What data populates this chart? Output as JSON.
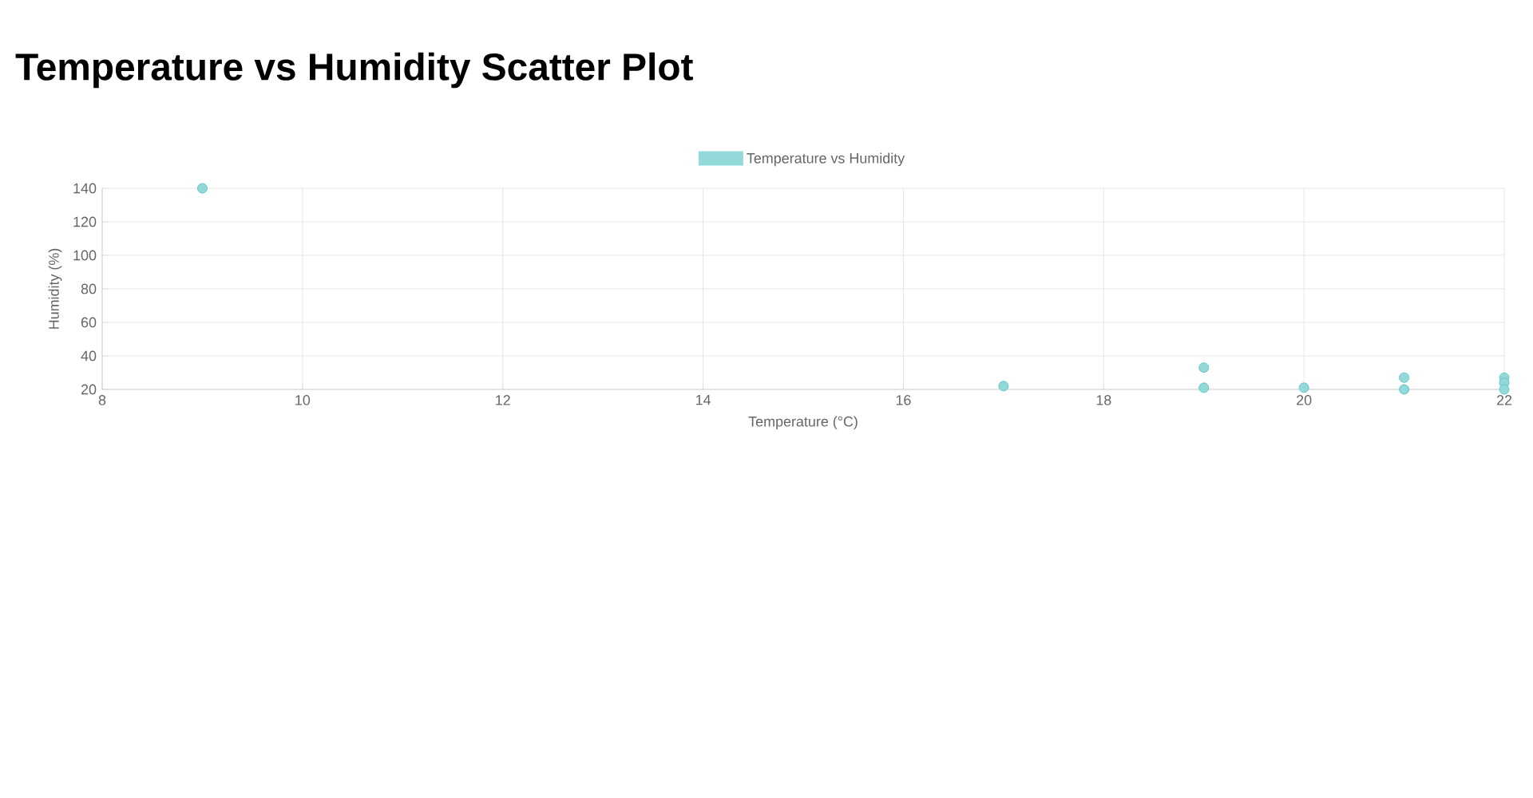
{
  "chart_data": {
    "type": "scatter",
    "title": "Temperature vs Humidity Scatter Plot",
    "xlabel": "Temperature (°C)",
    "ylabel": "Humidity (%)",
    "series": [
      {
        "name": "Temperature vs Humidity",
        "color": "#4bc0c0",
        "x": [
          9,
          17,
          19,
          19,
          20,
          21,
          21,
          22,
          22,
          22
        ],
        "values": [
          140,
          22,
          33,
          21,
          21,
          27,
          20,
          27,
          24,
          20
        ]
      }
    ],
    "xlim": [
      8,
      22
    ],
    "xticks": [
      8,
      10,
      12,
      14,
      16,
      18,
      20,
      22
    ],
    "ylim": [
      20,
      140
    ],
    "yticks": [
      20,
      40,
      60,
      80,
      100,
      120,
      140
    ],
    "grid": true,
    "legend": "top",
    "marker": "circle"
  }
}
